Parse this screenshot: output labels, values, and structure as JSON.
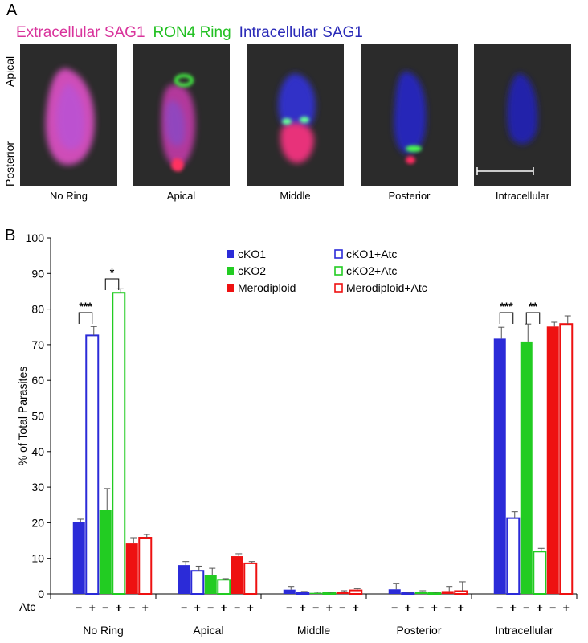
{
  "panel_a": {
    "letter": "A",
    "legend": {
      "extracellular": "Extracellular SAG1",
      "ron4": "RON4 Ring",
      "intracellular": "Intracellular SAG1"
    },
    "axis_labels": {
      "apical": "Apical",
      "posterior": "Posterior"
    },
    "panels": [
      "No Ring",
      "Apical",
      "Middle",
      "Posterior",
      "Intracellular"
    ],
    "colors": {
      "extracellular": "#d9349c",
      "ron4": "#22c022",
      "intracellular": "#2a2ab8"
    }
  },
  "panel_b": {
    "letter": "B"
  },
  "chart_data": {
    "type": "bar",
    "ylabel": "%  of Total Parasites",
    "ylim": [
      0,
      100
    ],
    "yticks": [
      0,
      10,
      20,
      30,
      40,
      50,
      60,
      70,
      80,
      90,
      100
    ],
    "categories": [
      "No Ring",
      "Apical",
      "Middle",
      "Posterior",
      "Intracellular"
    ],
    "atc_label": "Atc",
    "atc_signs": [
      "−",
      "+",
      "−",
      "+",
      "−",
      "+"
    ],
    "series": [
      {
        "name": "cKO1",
        "color": "#2b2bd8",
        "filled": true,
        "values": [
          20.2,
          8.1,
          1.2,
          1.3,
          71.7
        ],
        "errors": [
          0.8,
          1.0,
          0.9,
          1.7,
          3.2
        ]
      },
      {
        "name": "cKO1+Atc",
        "color": "#2b2bd8",
        "filled": false,
        "values": [
          72.6,
          6.5,
          0.4,
          0.3,
          21.3
        ],
        "errors": [
          2.5,
          1.3,
          0.3,
          0.2,
          1.8
        ]
      },
      {
        "name": "cKO2",
        "color": "#22cc22",
        "filled": true,
        "values": [
          23.7,
          5.4,
          0.3,
          0.5,
          70.9
        ],
        "errors": [
          5.9,
          1.8,
          0.2,
          0.4,
          4.9
        ]
      },
      {
        "name": "cKO2+Atc",
        "color": "#22cc22",
        "filled": false,
        "values": [
          84.6,
          4.0,
          0.3,
          0.3,
          11.9
        ],
        "errors": [
          1.1,
          0.3,
          0.2,
          0.2,
          0.9
        ]
      },
      {
        "name": "Merodiploid",
        "color": "#ee1111",
        "filled": true,
        "values": [
          14.2,
          10.6,
          0.5,
          0.8,
          75.1
        ],
        "errors": [
          1.6,
          0.7,
          0.4,
          1.3,
          1.2
        ]
      },
      {
        "name": "Merodiploid+Atc",
        "color": "#ee1111",
        "filled": false,
        "values": [
          15.8,
          8.6,
          1.0,
          0.8,
          75.8
        ],
        "errors": [
          0.9,
          0.5,
          0.5,
          2.6,
          2.3
        ]
      }
    ],
    "significance": [
      {
        "label": "***",
        "category": 0,
        "from": 0,
        "to": 1,
        "y": 79
      },
      {
        "label": "*",
        "category": 0,
        "from": 2,
        "to": 3,
        "y": 88.5
      },
      {
        "label": "***",
        "category": 4,
        "from": 0,
        "to": 1,
        "y": 79
      },
      {
        "label": "**",
        "category": 4,
        "from": 2,
        "to": 3,
        "y": 79
      }
    ],
    "legend_position": "top-center"
  }
}
